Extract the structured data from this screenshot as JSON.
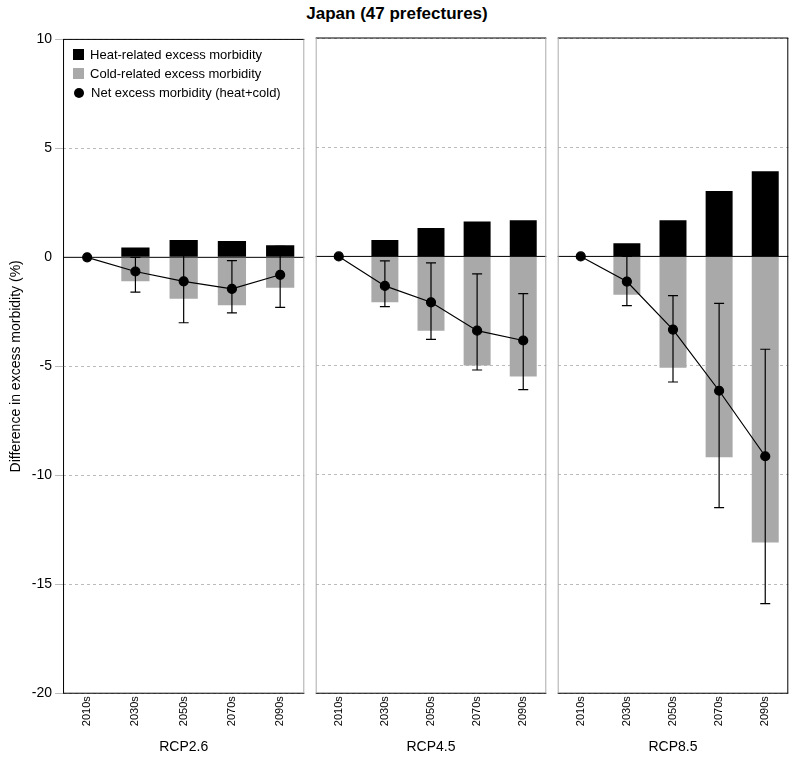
{
  "chart_data": {
    "type": "bar",
    "title": "Japan (47 prefectures)",
    "y_label": "Difference in excess morbidity (%)",
    "ylim": [
      -20,
      10
    ],
    "yticks": [
      -20,
      -15,
      -10,
      -5,
      0,
      5,
      10
    ],
    "grid": true,
    "legend": "top-left",
    "categories": [
      "2010s",
      "2030s",
      "2050s",
      "2070s",
      "2090s"
    ],
    "panels": [
      {
        "name": "RCP2.6",
        "series": [
          {
            "name": "Heat-related excess morbidity",
            "color": "#000000",
            "values": [
              0,
              0.45,
              0.8,
              0.75,
              0.55
            ]
          },
          {
            "name": "Cold-related excess morbidity",
            "color": "#a9a9a9",
            "values": [
              0,
              -1.1,
              -1.9,
              -2.2,
              -1.4
            ]
          },
          {
            "name": "Net excess morbidity (heat+cold)",
            "type": "line",
            "color": "#000000",
            "marker": "circle",
            "line_style": "solid",
            "values": [
              0,
              -0.65,
              -1.1,
              -1.45,
              -0.8
            ],
            "error_low": [
              null,
              -1.6,
              -3.0,
              -2.55,
              -2.3
            ],
            "error_high": [
              null,
              0.0,
              0.35,
              -0.15,
              0.5
            ]
          }
        ]
      },
      {
        "name": "RCP4.5",
        "series": [
          {
            "name": "Heat-related excess morbidity",
            "color": "#000000",
            "values": [
              0,
              0.75,
              1.3,
              1.6,
              1.65
            ]
          },
          {
            "name": "Cold-related excess morbidity",
            "color": "#a9a9a9",
            "values": [
              0,
              -2.1,
              -3.4,
              -5.0,
              -5.5
            ]
          },
          {
            "name": "Net excess morbidity (heat+cold)",
            "type": "line",
            "color": "#000000",
            "marker": "circle",
            "line_style": "solid",
            "values": [
              0,
              -1.35,
              -2.1,
              -3.4,
              -3.85
            ],
            "error_low": [
              null,
              -2.3,
              -3.8,
              -5.2,
              -6.1
            ],
            "error_high": [
              null,
              -0.2,
              -0.3,
              -0.8,
              -1.7
            ]
          }
        ]
      },
      {
        "name": "RCP8.5",
        "series": [
          {
            "name": "Heat-related excess morbidity",
            "color": "#000000",
            "values": [
              0,
              0.6,
              1.65,
              3.0,
              3.9
            ]
          },
          {
            "name": "Cold-related excess morbidity",
            "color": "#a9a9a9",
            "values": [
              0,
              -1.75,
              -5.1,
              -9.2,
              -13.1
            ]
          },
          {
            "name": "Net excess morbidity (heat+cold)",
            "type": "line",
            "color": "#000000",
            "marker": "circle",
            "line_style": "solid",
            "values": [
              0,
              -1.15,
              -3.35,
              -6.15,
              -9.15
            ],
            "error_low": [
              null,
              -2.25,
              -5.75,
              -11.5,
              -15.9
            ],
            "error_high": [
              null,
              0.0,
              -1.8,
              -2.15,
              -4.25
            ]
          }
        ]
      }
    ]
  }
}
